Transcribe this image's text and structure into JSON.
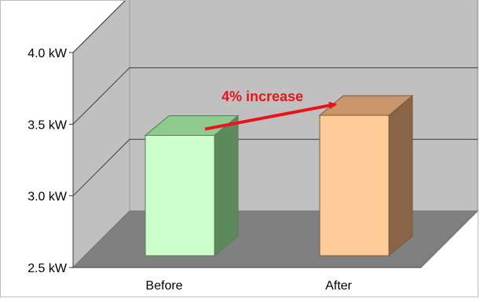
{
  "chart_data": {
    "type": "bar",
    "title": "",
    "xlabel": "",
    "ylabel": "",
    "categories": [
      "Before",
      "After"
    ],
    "values": [
      3.34,
      3.48
    ],
    "ylim": [
      2.5,
      4.0
    ],
    "yticks": [
      "2.5 kW",
      "3.0 kW",
      "3.5 kW",
      "4.0 kW"
    ],
    "ytick_values": [
      2.5,
      3.0,
      3.5,
      4.0
    ],
    "grid": true,
    "style": "3d-column",
    "annotation": {
      "text": "4% increase",
      "from": "Before",
      "to": "After",
      "color": "#e8141c"
    },
    "bar_colors": [
      {
        "front": "#ccffcc",
        "top": "#8fca8f",
        "side": "#5d8a5d",
        "edge": "#5a7a5a"
      },
      {
        "front": "#ffcc99",
        "top": "#c8966a",
        "side": "#8a6446",
        "edge": "#7a5a3c"
      }
    ],
    "wall_color": "#c0c0c0",
    "floor_color": "#808080"
  }
}
